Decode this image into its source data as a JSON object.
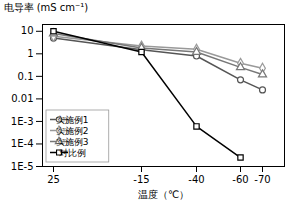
{
  "chart_data": {
    "type": "line",
    "xlabel": "温度（℃）",
    "ylabel": "电导率 (mS cm⁻¹)",
    "x": [
      25,
      -15,
      -40,
      -60,
      -70
    ],
    "series": [
      {
        "name": "实施例1",
        "color": "#555555",
        "marker": "circle",
        "line_style": "solid",
        "values": [
          5.0,
          1.5,
          0.8,
          0.07,
          0.025
        ]
      },
      {
        "name": "实施例2",
        "color": "#999999",
        "marker": "diamond",
        "line_style": "solid",
        "values": [
          6.0,
          2.2,
          1.6,
          0.38,
          0.23
        ]
      },
      {
        "name": "实施例3",
        "color": "#777777",
        "marker": "triangle",
        "line_style": "solid",
        "values": [
          8.0,
          1.8,
          1.2,
          0.25,
          0.12
        ]
      },
      {
        "name": "对比例",
        "color": "#000000",
        "marker": "square",
        "line_style": "solid",
        "values": [
          10.0,
          1.2,
          0.0006,
          2.5e-05,
          null
        ]
      }
    ],
    "xlim": [
      30,
      -80
    ],
    "xticks": [
      25,
      -15,
      -40,
      -60,
      -70
    ],
    "ylim": [
      1e-05,
      20
    ],
    "yticks": [
      {
        "value": 1e-05,
        "label": "1E-5"
      },
      {
        "value": 0.0001,
        "label": "1E-4"
      },
      {
        "value": 0.001,
        "label": "1E-3"
      },
      0.01,
      0.1,
      1,
      10
    ],
    "log": "y",
    "grid": false,
    "legend": "lower left"
  }
}
